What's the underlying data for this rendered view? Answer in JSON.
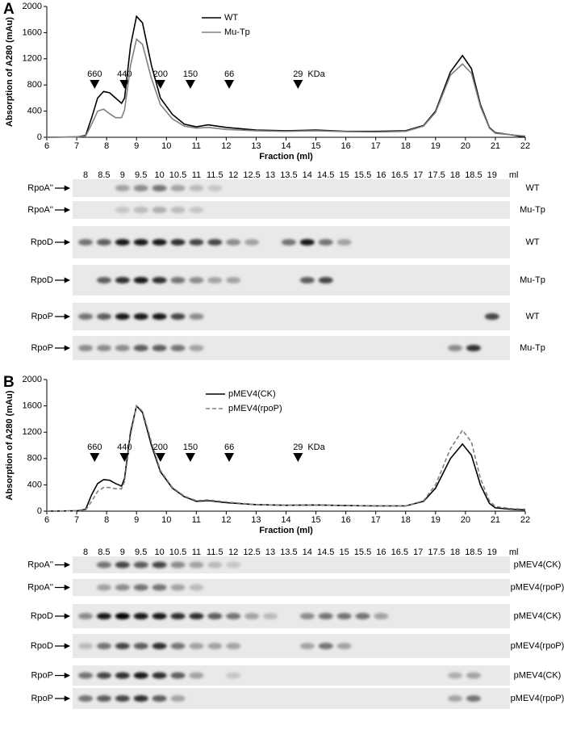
{
  "chart_data": [
    {
      "type": "line",
      "panel": "A",
      "xlabel": "Fraction (ml)",
      "ylabel": "Absorption of A280 (mAu)",
      "xlim": [
        6,
        22
      ],
      "ylim": [
        0,
        2000
      ],
      "xticks": [
        6,
        7,
        8,
        9,
        10,
        11,
        12,
        13,
        14,
        15,
        16,
        17,
        18,
        19,
        20,
        21,
        22
      ],
      "yticks": [
        0,
        400,
        800,
        1200,
        1600,
        2000
      ],
      "legend": "upper center",
      "x": [
        6,
        7,
        7.3,
        7.5,
        7.7,
        7.9,
        8.1,
        8.3,
        8.5,
        8.6,
        8.8,
        9.0,
        9.2,
        9.5,
        9.8,
        10.2,
        10.6,
        11,
        11.4,
        12,
        13,
        14,
        15,
        16,
        17,
        18,
        18.6,
        19,
        19.5,
        19.9,
        20.2,
        20.5,
        20.8,
        21,
        21.5,
        22
      ],
      "series": [
        {
          "name": "WT",
          "color": "#000000",
          "dash": false,
          "values": [
            0,
            5,
            30,
            300,
            600,
            700,
            680,
            600,
            520,
            600,
            1400,
            1850,
            1750,
            1100,
            600,
            350,
            200,
            160,
            190,
            150,
            110,
            100,
            110,
            90,
            90,
            100,
            180,
            400,
            1000,
            1250,
            1050,
            500,
            150,
            70,
            40,
            0
          ]
        },
        {
          "name": "Mu-Tp",
          "color": "#808080",
          "dash": false,
          "values": [
            0,
            5,
            20,
            200,
            400,
            430,
            360,
            300,
            300,
            420,
            1100,
            1500,
            1420,
            900,
            500,
            280,
            170,
            140,
            150,
            120,
            100,
            90,
            100,
            85,
            80,
            90,
            170,
            380,
            950,
            1120,
            980,
            470,
            140,
            60,
            40,
            20
          ]
        }
      ],
      "size_markers": [
        {
          "label": "660",
          "x": 7.6
        },
        {
          "label": "440",
          "x": 8.6
        },
        {
          "label": "200",
          "x": 9.8
        },
        {
          "label": "150",
          "x": 10.8
        },
        {
          "label": "66",
          "x": 12.1
        },
        {
          "label": "29",
          "x": 14.4
        }
      ],
      "size_unit": "KDa"
    },
    {
      "type": "line",
      "panel": "B",
      "xlabel": "Fraction (ml)",
      "ylabel": "Absorption of A280 (mAu)",
      "xlim": [
        6,
        22
      ],
      "ylim": [
        0,
        2000
      ],
      "xticks": [
        6,
        7,
        8,
        9,
        10,
        11,
        12,
        13,
        14,
        15,
        16,
        17,
        18,
        19,
        20,
        21,
        22
      ],
      "yticks": [
        0,
        400,
        800,
        1200,
        1600,
        2000
      ],
      "legend": "upper center",
      "x": [
        6,
        7,
        7.3,
        7.5,
        7.7,
        7.9,
        8.1,
        8.3,
        8.5,
        8.6,
        8.8,
        9.0,
        9.2,
        9.5,
        9.8,
        10.2,
        10.6,
        11,
        11.4,
        12,
        13,
        14,
        15,
        16,
        17,
        18,
        18.6,
        19,
        19.5,
        19.9,
        20.2,
        20.5,
        20.8,
        21,
        21.5,
        22
      ],
      "series": [
        {
          "name": "pMEV4(CK)",
          "color": "#000000",
          "dash": false,
          "values": [
            0,
            5,
            30,
            250,
            420,
            480,
            470,
            420,
            380,
            500,
            1200,
            1600,
            1500,
            1000,
            600,
            350,
            220,
            150,
            160,
            130,
            100,
            90,
            95,
            85,
            80,
            80,
            150,
            350,
            800,
            1020,
            850,
            400,
            120,
            50,
            30,
            20
          ]
        },
        {
          "name": "pMEV4(rpoP)",
          "color": "#808080",
          "dash": true,
          "values": [
            0,
            5,
            20,
            150,
            300,
            360,
            360,
            340,
            340,
            450,
            1150,
            1600,
            1520,
            1050,
            620,
            360,
            230,
            160,
            170,
            140,
            100,
            90,
            95,
            85,
            80,
            80,
            160,
            400,
            950,
            1230,
            1050,
            500,
            160,
            70,
            40,
            30
          ]
        }
      ],
      "size_markers": [
        {
          "label": "660",
          "x": 7.6
        },
        {
          "label": "440",
          "x": 8.6
        },
        {
          "label": "200",
          "x": 9.8
        },
        {
          "label": "150",
          "x": 10.8
        },
        {
          "label": "66",
          "x": 12.1
        },
        {
          "label": "29",
          "x": 14.4
        }
      ],
      "size_unit": "KDa"
    }
  ],
  "blots": [
    {
      "lanes": [
        "8",
        "8.5",
        "9",
        "9.5",
        "10",
        "10.5",
        "11",
        "11.5",
        "12",
        "12.5",
        "13",
        "13.5",
        "14",
        "14.5",
        "15",
        "15.5",
        "16",
        "16.5",
        "17",
        "17.5",
        "18",
        "18.5",
        "19"
      ],
      "lane_unit": "ml",
      "rows": [
        {
          "protein": "RpoA''",
          "sample": "WT"
        },
        {
          "protein": "RpoA''",
          "sample": "Mu-Tp"
        },
        {
          "protein": "RpoD",
          "sample": "WT"
        },
        {
          "protein": "RpoD",
          "sample": "Mu-Tp"
        },
        {
          "protein": "RpoP",
          "sample": "WT"
        },
        {
          "protein": "RpoP",
          "sample": "Mu-Tp"
        }
      ]
    },
    {
      "lanes": [
        "8",
        "8.5",
        "9",
        "9.5",
        "10",
        "10.5",
        "11",
        "11.5",
        "12",
        "12.5",
        "13",
        "13.5",
        "14",
        "14.5",
        "15",
        "15.5",
        "16",
        "16.5",
        "17",
        "17.5",
        "18",
        "18.5",
        "19"
      ],
      "lane_unit": "ml",
      "rows": [
        {
          "protein": "RpoA''",
          "sample": "pMEV4(CK)"
        },
        {
          "protein": "RpoA''",
          "sample": "pMEV4(rpoP)"
        },
        {
          "protein": "RpoD",
          "sample": "pMEV4(CK)"
        },
        {
          "protein": "RpoD",
          "sample": "pMEV4(rpoP)"
        },
        {
          "protein": "RpoP",
          "sample": "pMEV4(CK)"
        },
        {
          "protein": "RpoP",
          "sample": "pMEV4(rpoP)"
        }
      ]
    }
  ]
}
